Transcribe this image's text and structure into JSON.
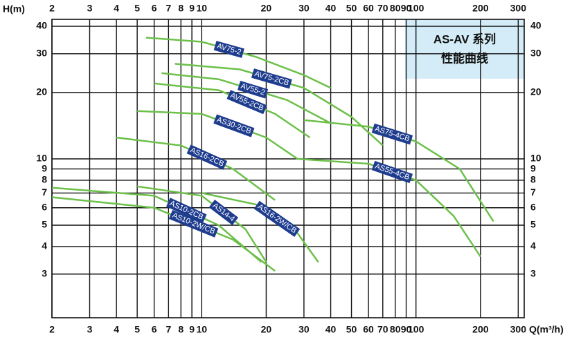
{
  "chart_data": {
    "type": "line",
    "title": "AS-AV 系列",
    "subtitle": "性能曲线",
    "x_label": "Q(m³/h)",
    "y_label": "H(m)",
    "xscale": "log",
    "yscale": "log",
    "grid": true,
    "xlim": [
      2,
      320
    ],
    "ylim": [
      1.9,
      43
    ],
    "xticks": [
      2,
      3,
      4,
      5,
      6,
      7,
      8,
      9,
      10,
      20,
      30,
      40,
      50,
      60,
      70,
      80,
      90,
      100,
      200,
      300
    ],
    "yticks": [
      3,
      4,
      5,
      6,
      7,
      8,
      9,
      10,
      20,
      30,
      40
    ],
    "series": [
      {
        "name": "AV75-2",
        "color": "#6cc04a",
        "x": [
          5.5,
          10,
          18,
          30,
          40
        ],
        "values": [
          35.5,
          34,
          29,
          24,
          21
        ]
      },
      {
        "name": "AV75-2CB",
        "color": "#6cc04a",
        "x": [
          7.5,
          15,
          30,
          50,
          70
        ],
        "values": [
          27,
          25.5,
          21,
          15.5,
          11.5
        ]
      },
      {
        "name": "AV55-2",
        "color": "#6cc04a",
        "x": [
          6.5,
          12,
          25,
          40
        ],
        "values": [
          24.5,
          23,
          18.5,
          14.5
        ]
      },
      {
        "name": "AV55-2CB",
        "color": "#6cc04a",
        "x": [
          6,
          12,
          22,
          32
        ],
        "values": [
          22,
          20.5,
          16,
          12.5
        ]
      },
      {
        "name": "AS30-2CB",
        "color": "#6cc04a",
        "x": [
          5,
          10,
          20,
          28
        ],
        "values": [
          16.5,
          16,
          12.5,
          10
        ]
      },
      {
        "name": "AS75-4CB",
        "color": "#6cc04a",
        "x": [
          30,
          60,
          100,
          160,
          230
        ],
        "values": [
          15,
          14,
          12,
          9,
          5.2
        ]
      },
      {
        "name": "AS55-4CB",
        "color": "#6cc04a",
        "x": [
          28,
          60,
          100,
          150,
          200
        ],
        "values": [
          10,
          9.5,
          8,
          5.5,
          3.6
        ]
      },
      {
        "name": "AS16-2CB",
        "color": "#6cc04a",
        "x": [
          4,
          8,
          14,
          22
        ],
        "values": [
          12.5,
          11.5,
          9,
          6.5
        ]
      },
      {
        "name": "AS16-2W/CB",
        "color": "#6cc04a",
        "x": [
          10,
          18,
          28,
          35
        ],
        "values": [
          7,
          6.2,
          4.6,
          3.4
        ]
      },
      {
        "name": "AS14-4",
        "color": "#6cc04a",
        "x": [
          5,
          10,
          16,
          20
        ],
        "values": [
          7.5,
          6.8,
          4.8,
          3.4
        ]
      },
      {
        "name": "AS10-2CB",
        "color": "#6cc04a",
        "x": [
          2,
          6,
          12,
          19
        ],
        "values": [
          7.4,
          6.8,
          5,
          3.4
        ]
      },
      {
        "name": "AS10-2W/CB",
        "color": "#6cc04a",
        "x": [
          2,
          6,
          14,
          22
        ],
        "values": [
          6.7,
          6,
          4.3,
          3.1
        ]
      }
    ]
  }
}
